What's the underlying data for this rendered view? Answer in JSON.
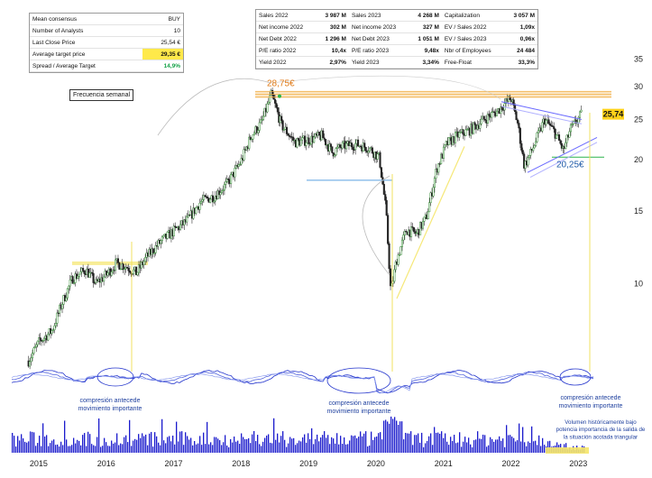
{
  "consensus": {
    "rows": [
      {
        "label": "Mean consensus",
        "value": "BUY"
      },
      {
        "label": "Number of Analysts",
        "value": "10"
      },
      {
        "label": "Last Close Price",
        "value": "25,54 €"
      },
      {
        "label": "Average target price",
        "value": "29,35 €"
      },
      {
        "label": "Spread / Average Target",
        "value": "14,9%"
      }
    ]
  },
  "fundamentals": {
    "rows": [
      [
        {
          "l": "Sales 2022",
          "v": "3 987 M"
        },
        {
          "l": "Sales 2023",
          "v": "4 268 M"
        },
        {
          "l": "Capitalization",
          "v": "3 057 M"
        }
      ],
      [
        {
          "l": "Net income 2022",
          "v": "302 M"
        },
        {
          "l": "Net income 2023",
          "v": "327 M"
        },
        {
          "l": "EV / Sales 2022",
          "v": "1,09x"
        }
      ],
      [
        {
          "l": "Net Debt 2022",
          "v": "1 296 M"
        },
        {
          "l": "Net Debt 2023",
          "v": "1 051 M"
        },
        {
          "l": "EV / Sales 2023",
          "v": "0,96x"
        }
      ],
      [
        {
          "l": "P/E ratio 2022",
          "v": "10,4x"
        },
        {
          "l": "P/E ratio 2023",
          "v": "9,48x"
        },
        {
          "l": "Nbr of Employees",
          "v": "24 484"
        }
      ],
      [
        {
          "l": "Yield 2022",
          "v": "2,97%"
        },
        {
          "l": "Yield 2023",
          "v": "3,34%"
        },
        {
          "l": "Free-Float",
          "v": "33,3%"
        }
      ]
    ]
  },
  "frequency_label": "Frecuencia semanal",
  "annotations": {
    "high_label": "28,75€",
    "low_label": "20,25€",
    "last_price": "25,74",
    "compression_1": [
      "compresión antecede",
      "movimiento importante"
    ],
    "compression_2": [
      "compresión antecede",
      "movimiento importante"
    ],
    "compression_3": [
      "compresión antecede",
      "movimiento importante"
    ],
    "volume_note": [
      "Volumen históricamente bajo",
      "potencia importancia de la salida de",
      "la situación acotada triangular"
    ]
  },
  "colors": {
    "candle_up": "#2e8b2e",
    "candle_down": "#222222",
    "oscillator": "#2233cc",
    "volume": "#1a1acc",
    "annotation_yellow": "#f5e66a",
    "resistance_orange": "#f2b14a",
    "support_blue": "#5aa0e0",
    "last_price_bg": "#ffd21a"
  },
  "chart_data": {
    "type": "candlestick",
    "y_scale": "log",
    "y_ticks": [
      10,
      15,
      20,
      25,
      30,
      35
    ],
    "x_ticks": [
      "2015",
      "2016",
      "2017",
      "2018",
      "2019",
      "2020",
      "2021",
      "2022",
      "2023"
    ],
    "ylim": [
      6.5,
      36
    ],
    "grid": false,
    "series": [
      {
        "values": [
          [
            2014.85,
            6.5
          ],
          [
            2015.0,
            7.2
          ],
          [
            2015.2,
            7.7
          ],
          [
            2015.35,
            9.0
          ],
          [
            2015.5,
            10.3
          ],
          [
            2015.7,
            10.8
          ],
          [
            2015.85,
            10.0
          ],
          [
            2016.0,
            10.5
          ],
          [
            2016.15,
            11.2
          ],
          [
            2016.3,
            11.0
          ],
          [
            2016.45,
            10.6
          ],
          [
            2016.6,
            11.6
          ],
          [
            2016.8,
            12.6
          ],
          [
            2017.0,
            13.4
          ],
          [
            2017.2,
            14.2
          ],
          [
            2017.4,
            15.8
          ],
          [
            2017.6,
            16.3
          ],
          [
            2017.8,
            17.5
          ],
          [
            2018.0,
            19.8
          ],
          [
            2018.15,
            22.8
          ],
          [
            2018.3,
            24.5
          ],
          [
            2018.45,
            28.75
          ],
          [
            2018.6,
            24.2
          ],
          [
            2018.8,
            22.0
          ],
          [
            2019.0,
            22.3
          ],
          [
            2019.2,
            22.8
          ],
          [
            2019.35,
            20.8
          ],
          [
            2019.5,
            21.5
          ],
          [
            2019.7,
            21.8
          ],
          [
            2019.9,
            21.3
          ],
          [
            2020.05,
            20.2
          ],
          [
            2020.15,
            15.0
          ],
          [
            2020.22,
            9.5
          ],
          [
            2020.3,
            11.3
          ],
          [
            2020.45,
            13.5
          ],
          [
            2020.6,
            13.2
          ],
          [
            2020.75,
            14.5
          ],
          [
            2020.9,
            19.0
          ],
          [
            2021.05,
            21.8
          ],
          [
            2021.2,
            22.8
          ],
          [
            2021.4,
            23.6
          ],
          [
            2021.6,
            25.0
          ],
          [
            2021.8,
            26.2
          ],
          [
            2022.0,
            28.2
          ],
          [
            2022.1,
            24.5
          ],
          [
            2022.2,
            19.3
          ],
          [
            2022.3,
            20.8
          ],
          [
            2022.5,
            25.0
          ],
          [
            2022.65,
            23.3
          ],
          [
            2022.78,
            21.0
          ],
          [
            2022.88,
            23.6
          ],
          [
            2023.05,
            25.74
          ]
        ]
      }
    ],
    "levels": [
      {
        "name": "resistance",
        "value": 28.75
      },
      {
        "name": "neckline_2018",
        "value": 17.8
      },
      {
        "name": "breakout_2016",
        "value": 11.2
      },
      {
        "name": "support",
        "value": 20.25
      }
    ]
  }
}
